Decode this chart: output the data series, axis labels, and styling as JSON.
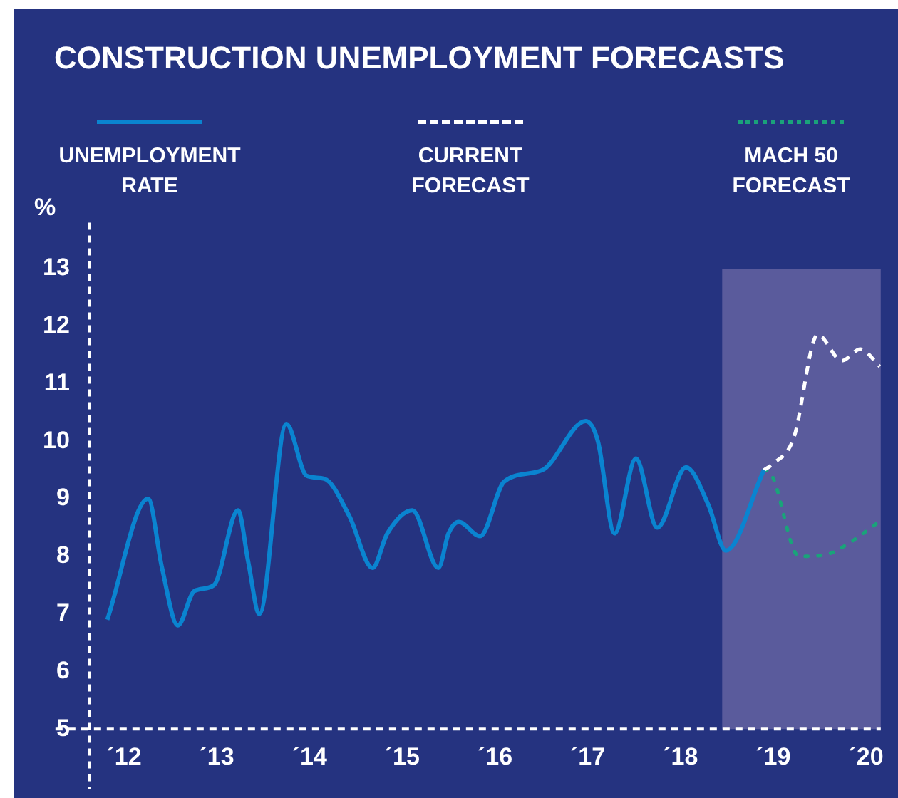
{
  "chart_data": {
    "type": "line",
    "title": "CONSTRUCTION UNEMPLOYMENT FORECASTS",
    "ylabel": "%",
    "xlim": [
      11.63,
      20.16
    ],
    "xticks": [
      {
        "value": 12,
        "label": "´12"
      },
      {
        "value": 13,
        "label": "´13"
      },
      {
        "value": 14,
        "label": "´14"
      },
      {
        "value": 15,
        "label": "´15"
      },
      {
        "value": 16,
        "label": "´16"
      },
      {
        "value": 17,
        "label": "´17"
      },
      {
        "value": 18,
        "label": "´18"
      },
      {
        "value": 19,
        "label": "´19"
      },
      {
        "value": 20,
        "label": "´20"
      }
    ],
    "ylim": [
      5,
      13.8
    ],
    "yticks": [
      5,
      6,
      7,
      8,
      9,
      10,
      11,
      12,
      13
    ],
    "grid": false,
    "legend": "top",
    "marker": "none",
    "bands": [
      {
        "axis": "x",
        "from": 18.45,
        "to": 20.16,
        "color": "#5a5b9c"
      }
    ],
    "series": [
      {
        "name": "UNEMPLOYMENT RATE",
        "color": "#0a84d0",
        "line_style": "solid",
        "x": [
          11.82,
          12.26,
          12.41,
          12.58,
          12.76,
          12.97,
          13.23,
          13.34,
          13.46,
          13.75,
          13.97,
          14.16,
          14.43,
          14.68,
          14.84,
          15.11,
          15.39,
          15.5,
          15.61,
          15.84,
          16.1,
          16.51,
          16.98,
          17.11,
          17.29,
          17.52,
          17.75,
          18.06,
          18.3,
          18.49,
          18.9
        ],
        "values": [
          6.9,
          9.0,
          7.8,
          6.8,
          7.4,
          7.5,
          8.8,
          7.9,
          7.0,
          10.3,
          9.4,
          9.35,
          8.7,
          7.8,
          8.4,
          8.8,
          7.8,
          8.4,
          8.6,
          8.35,
          9.3,
          9.5,
          10.35,
          10.0,
          8.4,
          9.7,
          8.5,
          9.55,
          8.9,
          8.1,
          9.5
        ]
      },
      {
        "name": "CURRENT FORECAST",
        "color": "#ffffff",
        "line_style": "dashed",
        "x": [
          18.9,
          18.99,
          19.22,
          19.48,
          19.74,
          19.94,
          20.15
        ],
        "values": [
          9.5,
          9.6,
          10.05,
          11.85,
          11.4,
          11.6,
          11.3
        ]
      },
      {
        "name": "MACH 50 FORECAST",
        "color": "#1aa37a",
        "line_style": "dotted",
        "x": [
          18.9,
          18.97,
          19.28,
          19.61,
          19.79,
          20.14
        ],
        "values": [
          9.5,
          9.45,
          8.0,
          8.05,
          8.2,
          8.6
        ]
      }
    ]
  }
}
